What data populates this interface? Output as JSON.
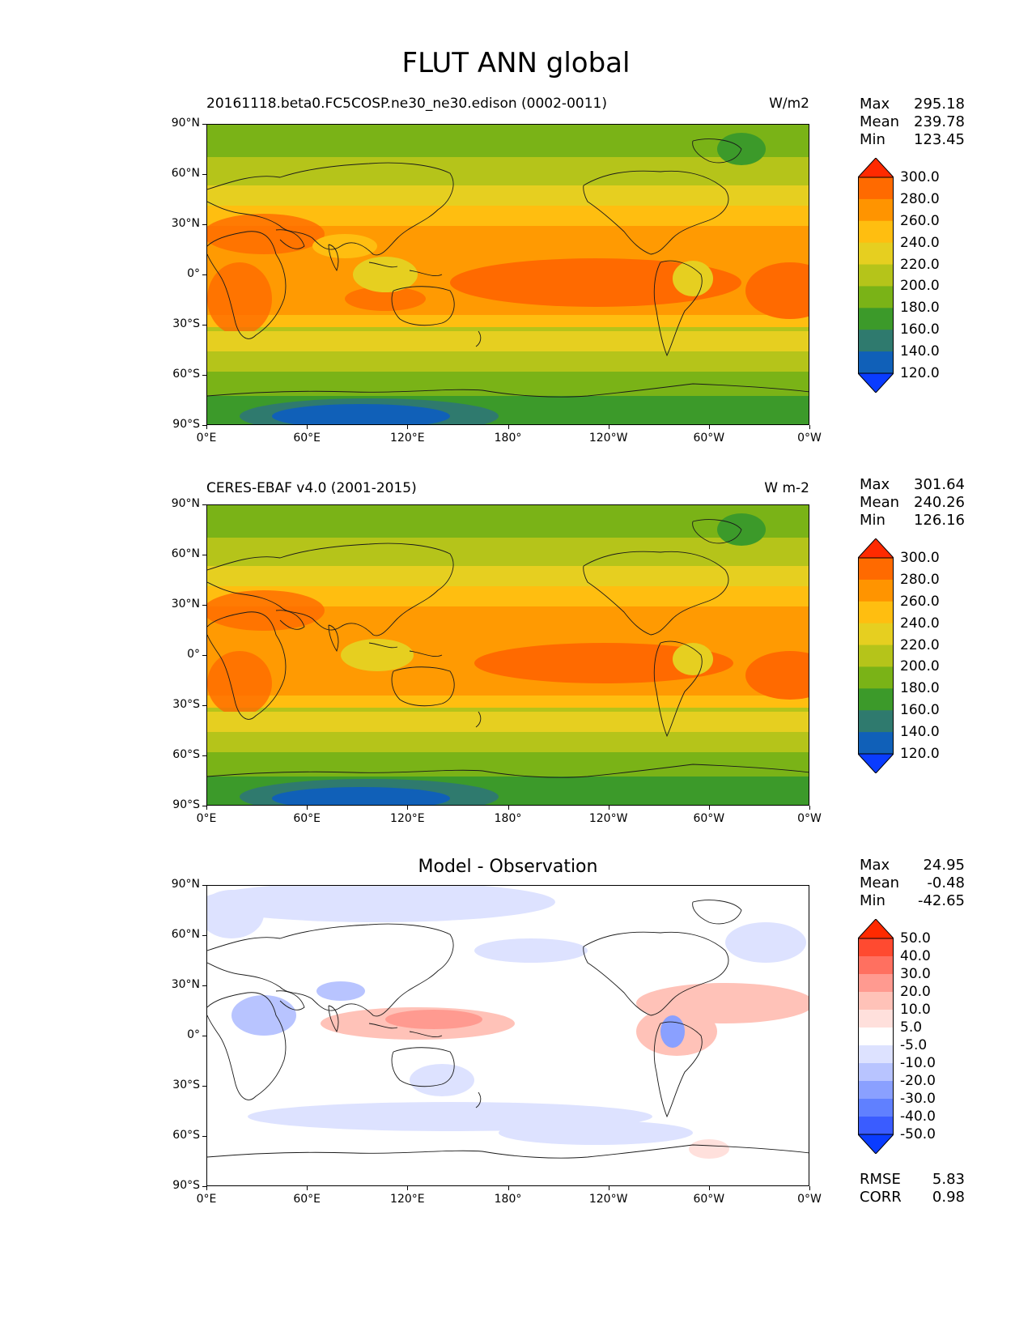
{
  "figure_title": "FLUT ANN global",
  "axis_ticks": {
    "y": [
      "90°N",
      "60°N",
      "30°N",
      "0°",
      "30°S",
      "60°S",
      "90°S"
    ],
    "x": [
      "0°E",
      "60°E",
      "120°E",
      "180°",
      "120°W",
      "60°W",
      "0°W"
    ]
  },
  "panels": [
    {
      "title_left": "20161118.beta0.FC5COSP.ne30_ne30.edison (0002-0011)",
      "title_right": "W/m2",
      "title_center": "",
      "stats": {
        "max_label": "Max",
        "max": "295.18",
        "mean_label": "Mean",
        "mean": "239.78",
        "min_label": "Min",
        "min": "123.45"
      },
      "colorbar": {
        "labels": [
          "300.0",
          "280.0",
          "260.0",
          "240.0",
          "220.0",
          "200.0",
          "180.0",
          "160.0",
          "140.0",
          "120.0"
        ],
        "colors": [
          "#ff2a00",
          "#ff6a00",
          "#ff9400",
          "#ffbe10",
          "#e6cf20",
          "#b5c41a",
          "#7ab317",
          "#3c9a2a",
          "#2f7a6e",
          "#1060b8",
          "#0a3cff"
        ]
      }
    },
    {
      "title_left": "CERES-EBAF v4.0 (2001-2015)",
      "title_right": "W m-2",
      "title_center": "",
      "stats": {
        "max_label": "Max",
        "max": "301.64",
        "mean_label": "Mean",
        "mean": "240.26",
        "min_label": "Min",
        "min": "126.16"
      },
      "colorbar": {
        "labels": [
          "300.0",
          "280.0",
          "260.0",
          "240.0",
          "220.0",
          "200.0",
          "180.0",
          "160.0",
          "140.0",
          "120.0"
        ],
        "colors": [
          "#ff2a00",
          "#ff6a00",
          "#ff9400",
          "#ffbe10",
          "#e6cf20",
          "#b5c41a",
          "#7ab317",
          "#3c9a2a",
          "#2f7a6e",
          "#1060b8",
          "#0a3cff"
        ]
      }
    },
    {
      "title_left": "",
      "title_right": "",
      "title_center": "Model - Observation",
      "stats": {
        "max_label": "Max",
        "max": "24.95",
        "mean_label": "Mean",
        "mean": "-0.48",
        "min_label": "Min",
        "min": "-42.65"
      },
      "extra_stats": {
        "rmse_label": "RMSE",
        "rmse": "5.83",
        "corr_label": "CORR",
        "corr": "0.98"
      },
      "colorbar": {
        "labels": [
          "50.0",
          "40.0",
          "30.0",
          "20.0",
          "10.0",
          "5.0",
          "-5.0",
          "-10.0",
          "-20.0",
          "-30.0",
          "-40.0",
          "-50.0"
        ],
        "colors": [
          "#ff2a00",
          "#ff4a30",
          "#ff7060",
          "#ff9a90",
          "#ffc2b8",
          "#ffe0dc",
          "#ffffff",
          "#dde2ff",
          "#b8c4ff",
          "#8aa0ff",
          "#6080ff",
          "#3a5cff",
          "#0a3cff"
        ]
      }
    }
  ]
}
